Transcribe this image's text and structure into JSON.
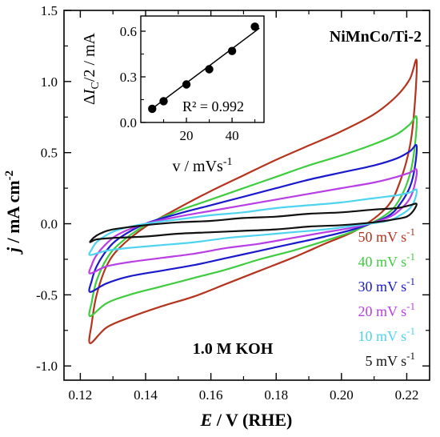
{
  "chart_data": [
    {
      "type": "line",
      "title": "",
      "sample_label": "NiMnCo/Ti-2",
      "electrolyte_label": "1.0 M KOH",
      "xlabel": {
        "sym": "E",
        "rest": " / V (RHE)"
      },
      "ylabel": {
        "sym": "j",
        "rest": " / mA cm",
        "sup": "-2"
      },
      "xlim": [
        0.115,
        0.227
      ],
      "ylim": [
        -1.1,
        1.5
      ],
      "x_ticks": [
        {
          "v": 0.12,
          "label": "0.12"
        },
        {
          "v": 0.14,
          "label": "0.14"
        },
        {
          "v": 0.16,
          "label": "0.16"
        },
        {
          "v": 0.18,
          "label": "0.18"
        },
        {
          "v": 0.2,
          "label": "0.20"
        },
        {
          "v": 0.22,
          "label": "0.22"
        }
      ],
      "y_ticks": [
        {
          "v": -1.0,
          "label": "-1.0"
        },
        {
          "v": -0.5,
          "label": "-0.5"
        },
        {
          "v": 0.0,
          "label": "0.0"
        },
        {
          "v": 0.5,
          "label": "0.5"
        },
        {
          "v": 1.0,
          "label": "1.0"
        },
        {
          "v": 1.5,
          "label": "1.5"
        }
      ],
      "grid": false,
      "legend_position": "bottom-right",
      "series": [
        {
          "name": "50 mV s",
          "sup": "-1",
          "color": "#b5341e",
          "ox": [
            [
              0.123,
              -0.84
            ],
            [
              0.1235,
              -0.7
            ],
            [
              0.125,
              -0.5
            ],
            [
              0.128,
              -0.3
            ],
            [
              0.132,
              -0.17
            ],
            [
              0.14,
              -0.02
            ],
            [
              0.15,
              0.11
            ],
            [
              0.16,
              0.23
            ],
            [
              0.17,
              0.34
            ],
            [
              0.18,
              0.45
            ],
            [
              0.19,
              0.55
            ],
            [
              0.2,
              0.65
            ],
            [
              0.21,
              0.77
            ],
            [
              0.217,
              0.9
            ],
            [
              0.221,
              1.02
            ],
            [
              0.223,
              1.15
            ]
          ],
          "red": [
            [
              0.223,
              1.15
            ],
            [
              0.2225,
              0.85
            ],
            [
              0.221,
              0.55
            ],
            [
              0.218,
              0.3
            ],
            [
              0.214,
              0.12
            ],
            [
              0.205,
              -0.04
            ],
            [
              0.195,
              -0.14
            ],
            [
              0.185,
              -0.24
            ],
            [
              0.175,
              -0.33
            ],
            [
              0.165,
              -0.42
            ],
            [
              0.155,
              -0.51
            ],
            [
              0.145,
              -0.58
            ],
            [
              0.135,
              -0.66
            ],
            [
              0.128,
              -0.73
            ],
            [
              0.123,
              -0.84
            ]
          ]
        },
        {
          "name": "40 mV s",
          "sup": "-1",
          "color": "#3fcc3f",
          "ox": [
            [
              0.123,
              -0.65
            ],
            [
              0.1235,
              -0.55
            ],
            [
              0.125,
              -0.4
            ],
            [
              0.128,
              -0.25
            ],
            [
              0.132,
              -0.14
            ],
            [
              0.14,
              -0.01
            ],
            [
              0.15,
              0.09
            ],
            [
              0.16,
              0.17
            ],
            [
              0.17,
              0.25
            ],
            [
              0.18,
              0.33
            ],
            [
              0.19,
              0.41
            ],
            [
              0.2,
              0.48
            ],
            [
              0.21,
              0.56
            ],
            [
              0.217,
              0.63
            ],
            [
              0.221,
              0.7
            ],
            [
              0.223,
              0.75
            ]
          ],
          "red": [
            [
              0.223,
              0.75
            ],
            [
              0.2225,
              0.55
            ],
            [
              0.221,
              0.35
            ],
            [
              0.218,
              0.18
            ],
            [
              0.214,
              0.07
            ],
            [
              0.205,
              -0.04
            ],
            [
              0.195,
              -0.12
            ],
            [
              0.185,
              -0.19
            ],
            [
              0.175,
              -0.25
            ],
            [
              0.165,
              -0.32
            ],
            [
              0.155,
              -0.38
            ],
            [
              0.145,
              -0.44
            ],
            [
              0.135,
              -0.5
            ],
            [
              0.128,
              -0.56
            ],
            [
              0.123,
              -0.65
            ]
          ]
        },
        {
          "name": "30 mV s",
          "sup": "-1",
          "color": "#1a1acc",
          "ox": [
            [
              0.123,
              -0.48
            ],
            [
              0.1235,
              -0.4
            ],
            [
              0.125,
              -0.3
            ],
            [
              0.128,
              -0.19
            ],
            [
              0.132,
              -0.1
            ],
            [
              0.14,
              0.0
            ],
            [
              0.15,
              0.07
            ],
            [
              0.16,
              0.13
            ],
            [
              0.17,
              0.19
            ],
            [
              0.18,
              0.25
            ],
            [
              0.19,
              0.31
            ],
            [
              0.2,
              0.36
            ],
            [
              0.21,
              0.41
            ],
            [
              0.217,
              0.46
            ],
            [
              0.221,
              0.51
            ],
            [
              0.223,
              0.55
            ]
          ],
          "red": [
            [
              0.223,
              0.55
            ],
            [
              0.2225,
              0.4
            ],
            [
              0.221,
              0.26
            ],
            [
              0.218,
              0.14
            ],
            [
              0.214,
              0.05
            ],
            [
              0.205,
              -0.03
            ],
            [
              0.195,
              -0.09
            ],
            [
              0.185,
              -0.14
            ],
            [
              0.175,
              -0.19
            ],
            [
              0.165,
              -0.24
            ],
            [
              0.155,
              -0.29
            ],
            [
              0.145,
              -0.33
            ],
            [
              0.135,
              -0.37
            ],
            [
              0.128,
              -0.42
            ],
            [
              0.123,
              -0.48
            ]
          ]
        },
        {
          "name": "20 mV s",
          "sup": "-1",
          "color": "#b93ee6",
          "ox": [
            [
              0.123,
              -0.35
            ],
            [
              0.1235,
              -0.29
            ],
            [
              0.125,
              -0.22
            ],
            [
              0.128,
              -0.14
            ],
            [
              0.132,
              -0.07
            ],
            [
              0.14,
              0.0
            ],
            [
              0.15,
              0.05
            ],
            [
              0.16,
              0.09
            ],
            [
              0.17,
              0.13
            ],
            [
              0.18,
              0.17
            ],
            [
              0.19,
              0.21
            ],
            [
              0.2,
              0.25
            ],
            [
              0.21,
              0.29
            ],
            [
              0.217,
              0.33
            ],
            [
              0.221,
              0.36
            ],
            [
              0.223,
              0.38
            ]
          ],
          "red": [
            [
              0.223,
              0.38
            ],
            [
              0.2225,
              0.28
            ],
            [
              0.221,
              0.18
            ],
            [
              0.218,
              0.1
            ],
            [
              0.214,
              0.04
            ],
            [
              0.205,
              -0.02
            ],
            [
              0.195,
              -0.06
            ],
            [
              0.185,
              -0.1
            ],
            [
              0.175,
              -0.14
            ],
            [
              0.165,
              -0.17
            ],
            [
              0.155,
              -0.21
            ],
            [
              0.145,
              -0.24
            ],
            [
              0.135,
              -0.27
            ],
            [
              0.128,
              -0.3
            ],
            [
              0.123,
              -0.35
            ]
          ]
        },
        {
          "name": "10 mV s",
          "sup": "-1",
          "color": "#4fd4f0",
          "ox": [
            [
              0.123,
              -0.22
            ],
            [
              0.1235,
              -0.18
            ],
            [
              0.125,
              -0.13
            ],
            [
              0.128,
              -0.08
            ],
            [
              0.132,
              -0.04
            ],
            [
              0.14,
              0.0
            ],
            [
              0.15,
              0.03
            ],
            [
              0.16,
              0.06
            ],
            [
              0.17,
              0.08
            ],
            [
              0.18,
              0.11
            ],
            [
              0.19,
              0.13
            ],
            [
              0.2,
              0.15
            ],
            [
              0.21,
              0.18
            ],
            [
              0.217,
              0.2
            ],
            [
              0.221,
              0.22
            ],
            [
              0.223,
              0.24
            ]
          ],
          "red": [
            [
              0.223,
              0.24
            ],
            [
              0.2225,
              0.17
            ],
            [
              0.221,
              0.11
            ],
            [
              0.218,
              0.06
            ],
            [
              0.214,
              0.02
            ],
            [
              0.205,
              -0.01
            ],
            [
              0.195,
              -0.04
            ],
            [
              0.185,
              -0.06
            ],
            [
              0.175,
              -0.08
            ],
            [
              0.165,
              -0.1
            ],
            [
              0.155,
              -0.13
            ],
            [
              0.145,
              -0.15
            ],
            [
              0.135,
              -0.17
            ],
            [
              0.128,
              -0.19
            ],
            [
              0.123,
              -0.22
            ]
          ]
        },
        {
          "name": "5 mV s",
          "sup": "-1",
          "color": "#111111",
          "ox": [
            [
              0.123,
              -0.13
            ],
            [
              0.124,
              -0.1
            ],
            [
              0.126,
              -0.07
            ],
            [
              0.13,
              -0.04
            ],
            [
              0.14,
              -0.01
            ],
            [
              0.15,
              0.01
            ],
            [
              0.16,
              0.02
            ],
            [
              0.17,
              0.04
            ],
            [
              0.18,
              0.05
            ],
            [
              0.19,
              0.07
            ],
            [
              0.2,
              0.08
            ],
            [
              0.21,
              0.1
            ],
            [
              0.217,
              0.11
            ],
            [
              0.221,
              0.13
            ],
            [
              0.223,
              0.14
            ]
          ],
          "red": [
            [
              0.223,
              0.14
            ],
            [
              0.222,
              0.09
            ],
            [
              0.22,
              0.05
            ],
            [
              0.216,
              0.03
            ],
            [
              0.21,
              0.01
            ],
            [
              0.2,
              -0.01
            ],
            [
              0.19,
              -0.02
            ],
            [
              0.18,
              -0.04
            ],
            [
              0.17,
              -0.05
            ],
            [
              0.16,
              -0.06
            ],
            [
              0.15,
              -0.07
            ],
            [
              0.14,
              -0.09
            ],
            [
              0.13,
              -0.1
            ],
            [
              0.125,
              -0.11
            ],
            [
              0.123,
              -0.13
            ]
          ]
        }
      ]
    },
    {
      "type": "scatter",
      "title": "",
      "xlabel": {
        "main": "v / mVs",
        "sup": "-1"
      },
      "ylabel": {
        "delta": "Δ",
        "sym": "I",
        "sub": "C",
        "rest": "/2 / mA"
      },
      "xlim": [
        0,
        54
      ],
      "ylim": [
        0,
        0.7
      ],
      "x_ticks": [
        {
          "v": 20,
          "label": "20"
        },
        {
          "v": 40,
          "label": "40"
        }
      ],
      "y_ticks": [
        {
          "v": 0.0,
          "label": "0.0"
        },
        {
          "v": 0.3,
          "label": "0.3"
        },
        {
          "v": 0.6,
          "label": "0.6"
        }
      ],
      "x": [
        5,
        10,
        20,
        30,
        40,
        50
      ],
      "y": [
        0.09,
        0.14,
        0.25,
        0.35,
        0.47,
        0.63
      ],
      "fit_line": [
        [
          4,
          0.08
        ],
        [
          52,
          0.62
        ]
      ],
      "annotation": "R² = 0.992",
      "marker_color": "#000000"
    }
  ]
}
